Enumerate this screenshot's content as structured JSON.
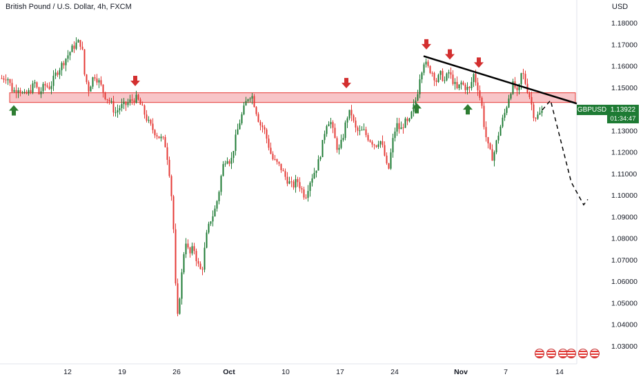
{
  "header": {
    "title": "British Pound / U.S. Dollar, 4h, FXCM",
    "currency": "USD"
  },
  "price_tag": {
    "symbol": "GBPUSD",
    "value": "1.13922",
    "countdown": "01:34:47",
    "color": "#1e7b34"
  },
  "colors": {
    "up": "#1e7b34",
    "down": "#e53935",
    "zone_fill": "#f8c5c8",
    "zone_border": "#e53935",
    "trendline": "#000000"
  },
  "chart_data": {
    "type": "candlestick",
    "title": "British Pound / U.S. Dollar, 4h, FXCM",
    "ylabel": "USD",
    "ylim": [
      1.025,
      1.185
    ],
    "y_ticks": [
      "1.18000",
      "1.17000",
      "1.16000",
      "1.15000",
      "1.14000",
      "1.13000",
      "1.12000",
      "1.11000",
      "1.10000",
      "1.09000",
      "1.08000",
      "1.07000",
      "1.06000",
      "1.05000",
      "1.04000",
      "1.03000"
    ],
    "x_ticks": [
      {
        "label": "12",
        "bold": false
      },
      {
        "label": "19",
        "bold": false
      },
      {
        "label": "26",
        "bold": false
      },
      {
        "label": "Oct",
        "bold": true
      },
      {
        "label": "10",
        "bold": false
      },
      {
        "label": "17",
        "bold": false
      },
      {
        "label": "24",
        "bold": false
      },
      {
        "label": "Nov",
        "bold": true
      },
      {
        "label": "7",
        "bold": false
      },
      {
        "label": "14",
        "bold": false
      }
    ],
    "close_path": [
      [
        0,
        1.154
      ],
      [
        10,
        1.155
      ],
      [
        18,
        1.148
      ],
      [
        26,
        1.15
      ],
      [
        34,
        1.146
      ],
      [
        42,
        1.148
      ],
      [
        50,
        1.152
      ],
      [
        56,
        1.147
      ],
      [
        64,
        1.151
      ],
      [
        72,
        1.15
      ],
      [
        80,
        1.156
      ],
      [
        88,
        1.16
      ],
      [
        96,
        1.164
      ],
      [
        104,
        1.168
      ],
      [
        112,
        1.171
      ],
      [
        118,
        1.17
      ],
      [
        122,
        1.156
      ],
      [
        128,
        1.149
      ],
      [
        136,
        1.156
      ],
      [
        144,
        1.152
      ],
      [
        152,
        1.146
      ],
      [
        160,
        1.143
      ],
      [
        166,
        1.138
      ],
      [
        174,
        1.141
      ],
      [
        182,
        1.142
      ],
      [
        190,
        1.144
      ],
      [
        198,
        1.145
      ],
      [
        206,
        1.14
      ],
      [
        214,
        1.134
      ],
      [
        222,
        1.13
      ],
      [
        230,
        1.127
      ],
      [
        238,
        1.125
      ],
      [
        244,
        1.114
      ],
      [
        250,
        1.093
      ],
      [
        256,
        1.04
      ],
      [
        262,
        1.06
      ],
      [
        268,
        1.08
      ],
      [
        274,
        1.072
      ],
      [
        280,
        1.076
      ],
      [
        286,
        1.068
      ],
      [
        292,
        1.064
      ],
      [
        298,
        1.08
      ],
      [
        304,
        1.088
      ],
      [
        310,
        1.092
      ],
      [
        316,
        1.1
      ],
      [
        322,
        1.113
      ],
      [
        328,
        1.118
      ],
      [
        334,
        1.115
      ],
      [
        340,
        1.125
      ],
      [
        346,
        1.133
      ],
      [
        352,
        1.139
      ],
      [
        358,
        1.145
      ],
      [
        364,
        1.147
      ],
      [
        370,
        1.14
      ],
      [
        376,
        1.133
      ],
      [
        382,
        1.131
      ],
      [
        388,
        1.124
      ],
      [
        394,
        1.117
      ],
      [
        400,
        1.115
      ],
      [
        406,
        1.113
      ],
      [
        412,
        1.109
      ],
      [
        418,
        1.106
      ],
      [
        424,
        1.104
      ],
      [
        430,
        1.107
      ],
      [
        436,
        1.103
      ],
      [
        442,
        1.099
      ],
      [
        448,
        1.106
      ],
      [
        454,
        1.11
      ],
      [
        460,
        1.114
      ],
      [
        466,
        1.122
      ],
      [
        472,
        1.133
      ],
      [
        478,
        1.135
      ],
      [
        484,
        1.127
      ],
      [
        490,
        1.12
      ],
      [
        496,
        1.126
      ],
      [
        502,
        1.136
      ],
      [
        508,
        1.139
      ],
      [
        514,
        1.131
      ],
      [
        520,
        1.129
      ],
      [
        526,
        1.13
      ],
      [
        532,
        1.127
      ],
      [
        538,
        1.125
      ],
      [
        544,
        1.123
      ],
      [
        550,
        1.126
      ],
      [
        556,
        1.12
      ],
      [
        562,
        1.11
      ],
      [
        568,
        1.124
      ],
      [
        574,
        1.133
      ],
      [
        580,
        1.13
      ],
      [
        586,
        1.134
      ],
      [
        592,
        1.133
      ],
      [
        598,
        1.14
      ],
      [
        604,
        1.146
      ],
      [
        608,
        1.155
      ],
      [
        614,
        1.162
      ],
      [
        620,
        1.159
      ],
      [
        626,
        1.157
      ],
      [
        632,
        1.153
      ],
      [
        638,
        1.156
      ],
      [
        644,
        1.153
      ],
      [
        650,
        1.157
      ],
      [
        656,
        1.153
      ],
      [
        662,
        1.149
      ],
      [
        668,
        1.152
      ],
      [
        674,
        1.15
      ],
      [
        680,
        1.149
      ],
      [
        686,
        1.156
      ],
      [
        692,
        1.15
      ],
      [
        698,
        1.141
      ],
      [
        702,
        1.13
      ],
      [
        708,
        1.121
      ],
      [
        714,
        1.117
      ],
      [
        720,
        1.126
      ],
      [
        726,
        1.133
      ],
      [
        732,
        1.139
      ],
      [
        738,
        1.147
      ],
      [
        744,
        1.152
      ],
      [
        750,
        1.146
      ],
      [
        756,
        1.158
      ],
      [
        762,
        1.151
      ],
      [
        768,
        1.145
      ],
      [
        774,
        1.136
      ],
      [
        780,
        1.137
      ],
      [
        786,
        1.139
      ]
    ],
    "resistance_zone": {
      "low": 1.143,
      "high": 1.1475
    },
    "trendline": {
      "x0": 614,
      "y0": 1.1645,
      "x1": 836,
      "y1": 1.1425
    },
    "projection_path": [
      [
        786,
        1.1395
      ],
      [
        798,
        1.144
      ],
      [
        828,
        1.106
      ],
      [
        846,
        1.0955
      ],
      [
        852,
        1.098
      ]
    ],
    "down_markers": [
      [
        196,
        1.1525
      ],
      [
        502,
        1.1515
      ],
      [
        618,
        1.1695
      ],
      [
        652,
        1.1648
      ],
      [
        694,
        1.161
      ]
    ],
    "up_markers": [
      [
        20,
        1.1395
      ],
      [
        604,
        1.1405
      ],
      [
        678,
        1.14
      ]
    ]
  },
  "footer": {
    "badge_groups": [
      3,
      3
    ]
  }
}
